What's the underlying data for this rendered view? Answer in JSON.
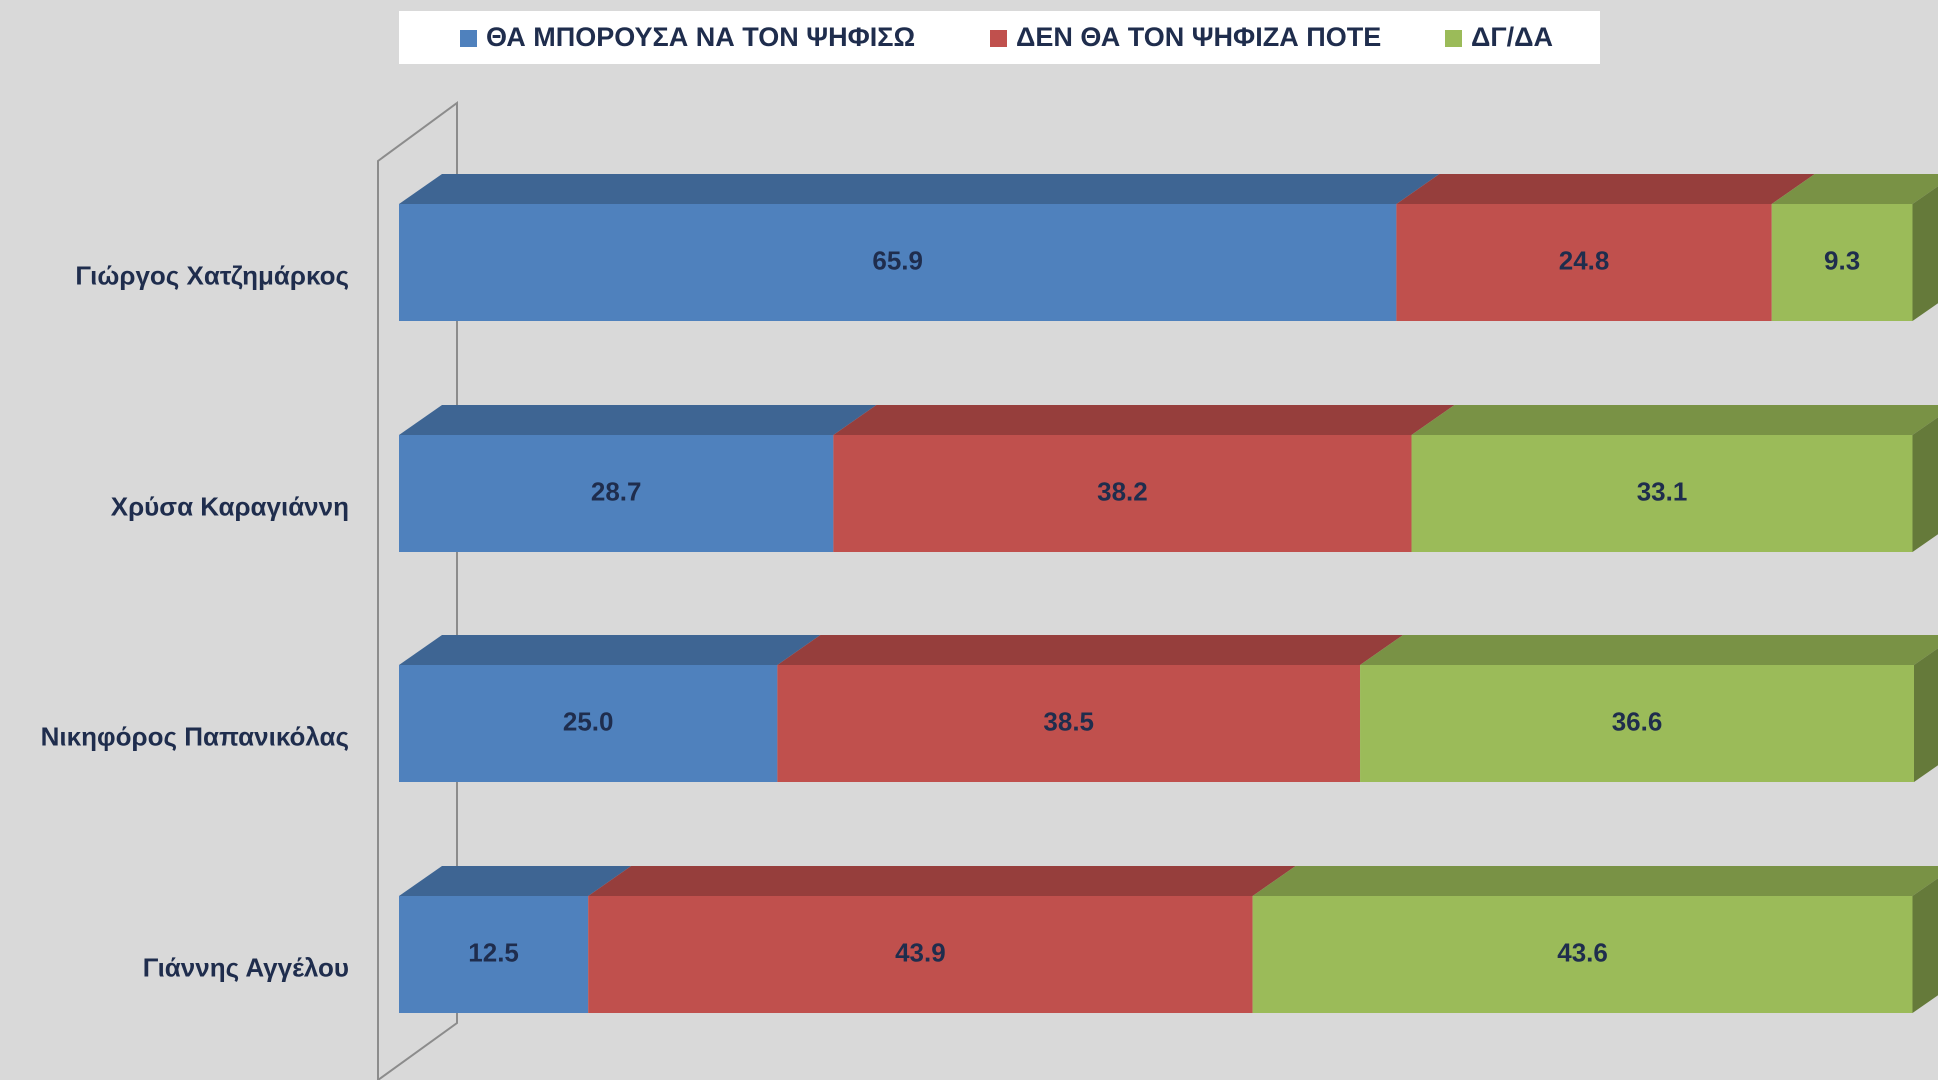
{
  "chart_data": {
    "type": "stacked-bar-horizontal",
    "categories": [
      "Γιώργος Χατζημάρκος",
      "Χρύσα Καραγιάννη",
      "Νικηφόρος Παπανικόλας",
      "Γιάννης Αγγέλου"
    ],
    "series": [
      {
        "name": "ΘΑ ΜΠΟΡΟΥΣΑ ΝΑ ΤΟΝ ΨΗΦΙΣΩ",
        "color": "#4f81bd",
        "values": [
          65.9,
          28.7,
          25.0,
          12.5
        ],
        "value_labels": [
          "65.9",
          "28.7",
          "25.0",
          "12.5"
        ]
      },
      {
        "name": "ΔΕΝ ΘΑ ΤΟΝ ΨΗΦΙΖΑ ΠΟΤΕ",
        "color": "#c0504d",
        "values": [
          24.8,
          38.2,
          38.5,
          43.9
        ],
        "value_labels": [
          "24.8",
          "38.2",
          "38.5",
          "43.9"
        ]
      },
      {
        "name": "ΔΓ/ΔΑ",
        "color": "#9bbb59",
        "values": [
          9.3,
          33.1,
          36.6,
          43.6
        ],
        "value_labels": [
          "9.3",
          "33.1",
          "36.6",
          "43.6"
        ]
      }
    ],
    "legend": "top"
  }
}
